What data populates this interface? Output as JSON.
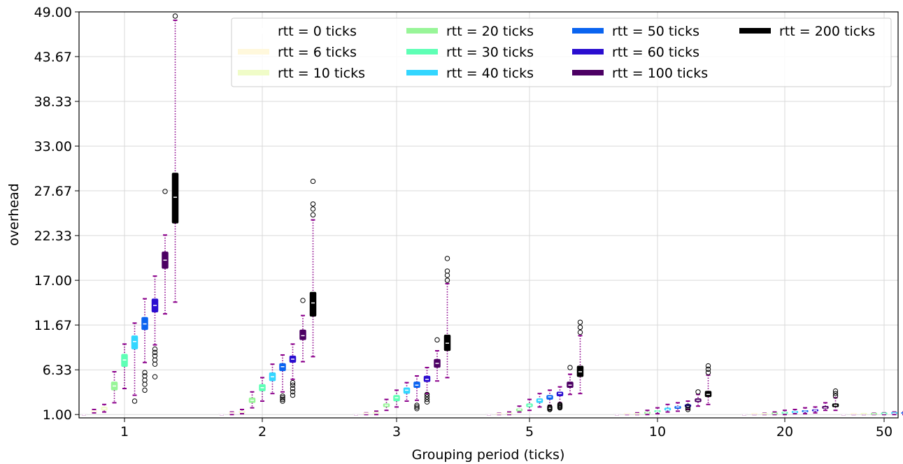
{
  "chart_data": {
    "type": "box",
    "xlabel": "Grouping period (ticks)",
    "ylabel": "overhead",
    "ylim": [
      0.6,
      49.0
    ],
    "yticks": [
      "1.00",
      "6.33",
      "11.67",
      "17.00",
      "22.33",
      "27.67",
      "33.00",
      "38.33",
      "43.67",
      "49.00"
    ],
    "ytick_values": [
      1.0,
      6.33,
      11.67,
      17.0,
      22.33,
      27.67,
      33.0,
      38.33,
      43.67,
      49.0
    ],
    "grid": true,
    "legend_position": "top-right",
    "categories": [
      "1",
      "2",
      "3",
      "5",
      "10",
      "20",
      "50"
    ],
    "series": [
      {
        "name": "rtt = 0 ticks",
        "color": "#ffffff",
        "boxes": [
          {
            "q1": 1.0,
            "med": 1.0,
            "q3": 1.05,
            "wlo": 1.0,
            "whi": 1.05,
            "outliers": []
          },
          {
            "q1": 1.0,
            "med": 1.0,
            "q3": 1.05,
            "wlo": 1.0,
            "whi": 1.05,
            "outliers": []
          },
          {
            "q1": 1.0,
            "med": 1.0,
            "q3": 1.05,
            "wlo": 1.0,
            "whi": 1.05,
            "outliers": []
          },
          {
            "q1": 1.0,
            "med": 1.0,
            "q3": 1.05,
            "wlo": 1.0,
            "whi": 1.05,
            "outliers": []
          },
          {
            "q1": 1.0,
            "med": 1.0,
            "q3": 1.05,
            "wlo": 1.0,
            "whi": 1.05,
            "outliers": []
          },
          {
            "q1": 1.0,
            "med": 1.0,
            "q3": 1.05,
            "wlo": 1.0,
            "whi": 1.05,
            "outliers": []
          },
          {
            "q1": 1.0,
            "med": 1.0,
            "q3": 1.05,
            "wlo": 1.0,
            "whi": 1.05,
            "outliers": []
          }
        ]
      },
      {
        "name": "rtt = 6 ticks",
        "color": "#fff8dc",
        "boxes": [
          {
            "q1": 1.3,
            "med": 1.4,
            "q3": 1.5,
            "wlo": 1.2,
            "whi": 1.6,
            "outliers": []
          },
          {
            "q1": 1.1,
            "med": 1.15,
            "q3": 1.2,
            "wlo": 1.0,
            "whi": 1.3,
            "outliers": []
          },
          {
            "q1": 1.05,
            "med": 1.1,
            "q3": 1.15,
            "wlo": 1.0,
            "whi": 1.2,
            "outliers": []
          },
          {
            "q1": 1.0,
            "med": 1.05,
            "q3": 1.1,
            "wlo": 1.0,
            "whi": 1.15,
            "outliers": []
          },
          {
            "q1": 1.0,
            "med": 1.05,
            "q3": 1.1,
            "wlo": 1.0,
            "whi": 1.1,
            "outliers": []
          },
          {
            "q1": 1.0,
            "med": 1.02,
            "q3": 1.05,
            "wlo": 1.0,
            "whi": 1.1,
            "outliers": []
          },
          {
            "q1": 1.0,
            "med": 1.02,
            "q3": 1.05,
            "wlo": 1.0,
            "whi": 1.1,
            "outliers": []
          }
        ]
      },
      {
        "name": "rtt = 10 ticks",
        "color": "#f0fcc8",
        "boxes": [
          {
            "q1": 1.5,
            "med": 1.7,
            "q3": 1.9,
            "wlo": 1.3,
            "whi": 2.2,
            "outliers": []
          },
          {
            "q1": 1.2,
            "med": 1.3,
            "q3": 1.4,
            "wlo": 1.1,
            "whi": 1.6,
            "outliers": []
          },
          {
            "q1": 1.1,
            "med": 1.2,
            "q3": 1.3,
            "wlo": 1.0,
            "whi": 1.4,
            "outliers": []
          },
          {
            "q1": 1.05,
            "med": 1.1,
            "q3": 1.2,
            "wlo": 1.0,
            "whi": 1.3,
            "outliers": []
          },
          {
            "q1": 1.0,
            "med": 1.05,
            "q3": 1.1,
            "wlo": 1.0,
            "whi": 1.2,
            "outliers": []
          },
          {
            "q1": 1.0,
            "med": 1.05,
            "q3": 1.1,
            "wlo": 1.0,
            "whi": 1.15,
            "outliers": []
          },
          {
            "q1": 1.0,
            "med": 1.02,
            "q3": 1.05,
            "wlo": 1.0,
            "whi": 1.1,
            "outliers": []
          }
        ]
      },
      {
        "name": "rtt = 20 ticks",
        "color": "#98f598",
        "boxes": [
          {
            "q1": 3.9,
            "med": 4.4,
            "q3": 4.9,
            "wlo": 2.4,
            "whi": 6.1,
            "outliers": []
          },
          {
            "q1": 2.4,
            "med": 2.7,
            "q3": 3.0,
            "wlo": 1.8,
            "whi": 3.7,
            "outliers": []
          },
          {
            "q1": 1.9,
            "med": 2.1,
            "q3": 2.3,
            "wlo": 1.5,
            "whi": 2.8,
            "outliers": []
          },
          {
            "q1": 1.4,
            "med": 1.6,
            "q3": 1.7,
            "wlo": 1.3,
            "whi": 2.0,
            "outliers": []
          },
          {
            "q1": 1.1,
            "med": 1.2,
            "q3": 1.3,
            "wlo": 1.0,
            "whi": 1.5,
            "outliers": []
          },
          {
            "q1": 1.05,
            "med": 1.1,
            "q3": 1.2,
            "wlo": 1.0,
            "whi": 1.3,
            "outliers": []
          },
          {
            "q1": 1.0,
            "med": 1.05,
            "q3": 1.1,
            "wlo": 1.0,
            "whi": 1.15,
            "outliers": []
          }
        ]
      },
      {
        "name": "rtt = 30 ticks",
        "color": "#5effb5",
        "boxes": [
          {
            "q1": 6.7,
            "med": 7.5,
            "q3": 8.2,
            "wlo": 4.1,
            "whi": 9.4,
            "outliers": []
          },
          {
            "q1": 3.8,
            "med": 4.2,
            "q3": 4.6,
            "wlo": 2.6,
            "whi": 5.4,
            "outliers": []
          },
          {
            "q1": 2.6,
            "med": 3.0,
            "q3": 3.3,
            "wlo": 1.9,
            "whi": 3.9,
            "outliers": []
          },
          {
            "q1": 1.9,
            "med": 2.1,
            "q3": 2.3,
            "wlo": 1.5,
            "whi": 2.8,
            "outliers": []
          },
          {
            "q1": 1.3,
            "med": 1.4,
            "q3": 1.5,
            "wlo": 1.1,
            "whi": 1.8,
            "outliers": []
          },
          {
            "q1": 1.1,
            "med": 1.2,
            "q3": 1.3,
            "wlo": 1.0,
            "whi": 1.5,
            "outliers": []
          },
          {
            "q1": 1.05,
            "med": 1.1,
            "q3": 1.15,
            "wlo": 1.0,
            "whi": 1.2,
            "outliers": []
          }
        ]
      },
      {
        "name": "rtt = 40 ticks",
        "color": "#33d6ff",
        "boxes": [
          {
            "q1": 8.8,
            "med": 9.7,
            "q3": 10.4,
            "wlo": 3.3,
            "whi": 11.9,
            "outliers": [
              2.6
            ]
          },
          {
            "q1": 5.0,
            "med": 5.5,
            "q3": 6.0,
            "wlo": 3.5,
            "whi": 7.0,
            "outliers": []
          },
          {
            "q1": 3.5,
            "med": 3.9,
            "q3": 4.2,
            "wlo": 2.6,
            "whi": 4.8,
            "outliers": []
          },
          {
            "q1": 2.4,
            "med": 2.7,
            "q3": 2.9,
            "wlo": 1.9,
            "whi": 3.5,
            "outliers": []
          },
          {
            "q1": 1.5,
            "med": 1.6,
            "q3": 1.8,
            "wlo": 1.3,
            "whi": 2.2,
            "outliers": []
          },
          {
            "q1": 1.2,
            "med": 1.3,
            "q3": 1.4,
            "wlo": 1.1,
            "whi": 1.6,
            "outliers": []
          },
          {
            "q1": 1.1,
            "med": 1.15,
            "q3": 1.2,
            "wlo": 1.0,
            "whi": 1.3,
            "outliers": []
          }
        ]
      },
      {
        "name": "rtt = 50 ticks",
        "color": "#0a64f0",
        "boxes": [
          {
            "q1": 11.1,
            "med": 11.8,
            "q3": 12.6,
            "wlo": 7.2,
            "whi": 14.8,
            "outliers": [
              3.9,
              4.6,
              5.1,
              5.6,
              6.0
            ]
          },
          {
            "q1": 6.2,
            "med": 6.7,
            "q3": 7.1,
            "wlo": 3.7,
            "whi": 8.1,
            "outliers": [
              2.6,
              2.8,
              3.0,
              3.2
            ]
          },
          {
            "q1": 4.2,
            "med": 4.5,
            "q3": 4.9,
            "wlo": 2.7,
            "whi": 5.6,
            "outliers": [
              1.7,
              1.9,
              2.1
            ]
          },
          {
            "q1": 2.8,
            "med": 3.1,
            "q3": 3.3,
            "wlo": 2.1,
            "whi": 3.9,
            "outliers": [
              1.6,
              1.7,
              1.8,
              1.9
            ]
          },
          {
            "q1": 1.7,
            "med": 1.9,
            "q3": 2.0,
            "wlo": 1.4,
            "whi": 2.4,
            "outliers": []
          },
          {
            "q1": 1.3,
            "med": 1.4,
            "q3": 1.5,
            "wlo": 1.1,
            "whi": 1.8,
            "outliers": []
          },
          {
            "q1": 1.1,
            "med": 1.15,
            "q3": 1.2,
            "wlo": 1.0,
            "whi": 1.3,
            "outliers": []
          }
        ]
      },
      {
        "name": "rtt = 60 ticks",
        "color": "#2a0dd0",
        "boxes": [
          {
            "q1": 13.2,
            "med": 14.0,
            "q3": 14.8,
            "wlo": 9.3,
            "whi": 17.5,
            "outliers": [
              5.5,
              7.0,
              7.5,
              8.0,
              8.4,
              8.8
            ]
          },
          {
            "q1": 7.2,
            "med": 7.6,
            "q3": 8.0,
            "wlo": 5.2,
            "whi": 9.4,
            "outliers": [
              3.3,
              3.7,
              4.1,
              4.5,
              4.8
            ]
          },
          {
            "q1": 4.9,
            "med": 5.2,
            "q3": 5.6,
            "wlo": 3.5,
            "whi": 6.6,
            "outliers": [
              2.5,
              2.8,
              3.1,
              3.4
            ]
          },
          {
            "q1": 3.2,
            "med": 3.5,
            "q3": 3.7,
            "wlo": 2.4,
            "whi": 4.3,
            "outliers": [
              1.8,
              1.9,
              2.0,
              2.1,
              2.2
            ]
          },
          {
            "q1": 1.9,
            "med": 2.0,
            "q3": 2.2,
            "wlo": 1.6,
            "whi": 2.6,
            "outliers": [
              1.6,
              1.8,
              2.0
            ]
          },
          {
            "q1": 1.4,
            "med": 1.5,
            "q3": 1.6,
            "wlo": 1.2,
            "whi": 1.9,
            "outliers": []
          },
          {
            "q1": 1.1,
            "med": 1.2,
            "q3": 1.25,
            "wlo": 1.0,
            "whi": 1.35,
            "outliers": []
          }
        ]
      },
      {
        "name": "rtt = 100 ticks",
        "color": "#4c0063",
        "boxes": [
          {
            "q1": 18.4,
            "med": 19.4,
            "q3": 20.4,
            "wlo": 13.0,
            "whi": 22.4,
            "outliers": [
              27.6
            ]
          },
          {
            "q1": 9.9,
            "med": 10.4,
            "q3": 11.1,
            "wlo": 7.3,
            "whi": 12.8,
            "outliers": [
              14.6
            ]
          },
          {
            "q1": 6.6,
            "med": 7.1,
            "q3": 7.6,
            "wlo": 5.0,
            "whi": 8.6,
            "outliers": [
              9.9
            ]
          },
          {
            "q1": 4.2,
            "med": 4.5,
            "q3": 4.9,
            "wlo": 3.4,
            "whi": 5.8,
            "outliers": [
              6.6
            ]
          },
          {
            "q1": 2.5,
            "med": 2.7,
            "q3": 2.9,
            "wlo": 2.0,
            "whi": 3.4,
            "outliers": [
              3.7
            ]
          },
          {
            "q1": 1.7,
            "med": 1.8,
            "q3": 2.0,
            "wlo": 1.5,
            "whi": 2.4,
            "outliers": []
          },
          {
            "q1": 1.3,
            "med": 1.35,
            "q3": 1.45,
            "wlo": 1.1,
            "whi": 1.7,
            "outliers": []
          }
        ]
      },
      {
        "name": "rtt = 200 ticks",
        "color": "#000000",
        "boxes": [
          {
            "q1": 23.8,
            "med": 26.9,
            "q3": 29.8,
            "wlo": 14.4,
            "whi": 48.0,
            "outliers": [
              48.5
            ]
          },
          {
            "q1": 12.7,
            "med": 14.3,
            "q3": 15.6,
            "wlo": 7.9,
            "whi": 24.2,
            "outliers": [
              24.8,
              25.5,
              26.1,
              28.8
            ]
          },
          {
            "q1": 8.6,
            "med": 9.5,
            "q3": 10.5,
            "wlo": 5.4,
            "whi": 16.6,
            "outliers": [
              17.0,
              17.6,
              18.1,
              19.6
            ]
          },
          {
            "q1": 5.5,
            "med": 6.1,
            "q3": 6.8,
            "wlo": 3.5,
            "whi": 10.4,
            "outliers": [
              10.8,
              11.4,
              12.0
            ]
          },
          {
            "q1": 3.1,
            "med": 3.4,
            "q3": 3.8,
            "wlo": 2.2,
            "whi": 5.7,
            "outliers": [
              6.0,
              6.4,
              6.8
            ]
          },
          {
            "q1": 1.9,
            "med": 2.1,
            "q3": 2.3,
            "wlo": 1.5,
            "whi": 3.0,
            "outliers": [
              3.2,
              3.5,
              3.8
            ]
          },
          {
            "q1": 1.4,
            "med": 1.5,
            "q3": 1.6,
            "wlo": 1.2,
            "whi": 2.0,
            "outliers": [
              2.1
            ]
          }
        ]
      }
    ]
  }
}
